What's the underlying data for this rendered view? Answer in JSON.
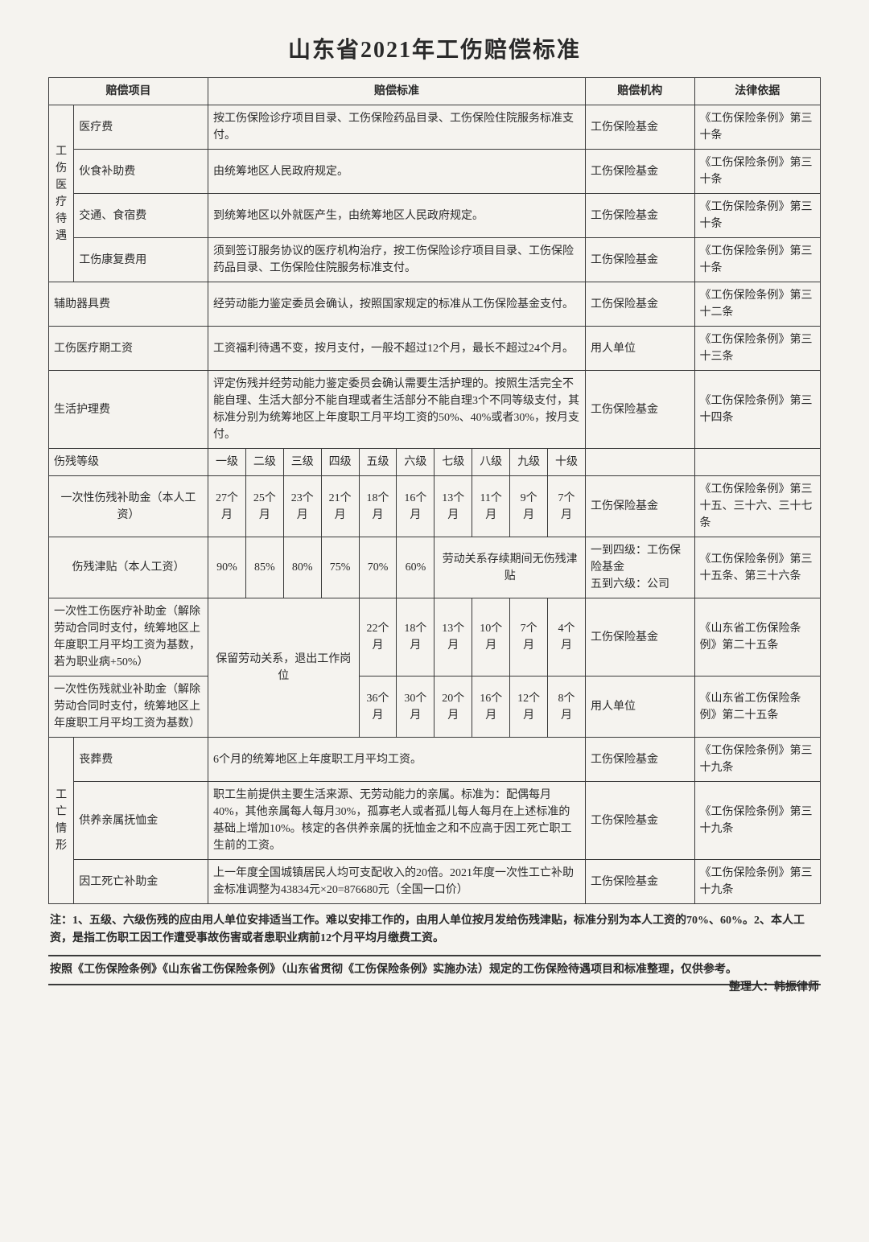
{
  "title": "山东省2021年工伤赔偿标准",
  "headers": {
    "item": "赔偿项目",
    "standard": "赔偿标准",
    "org": "赔偿机构",
    "law": "法律依据"
  },
  "groups": {
    "medical": "工伤医疗待遇",
    "death": "工亡情形"
  },
  "rows": {
    "r1": {
      "name": "医疗费",
      "std": "按工伤保险诊疗项目目录、工伤保险药品目录、工伤保险住院服务标准支付。",
      "org": "工伤保险基金",
      "law": "《工伤保险条例》第三十条"
    },
    "r2": {
      "name": "伙食补助费",
      "std": "由统筹地区人民政府规定。",
      "org": "工伤保险基金",
      "law": "《工伤保险条例》第三十条"
    },
    "r3": {
      "name": "交通、食宿费",
      "std": "到统筹地区以外就医产生，由统筹地区人民政府规定。",
      "org": "工伤保险基金",
      "law": "《工伤保险条例》第三十条"
    },
    "r4": {
      "name": "工伤康复费用",
      "std": "须到签订服务协议的医疗机构治疗，按工伤保险诊疗项目目录、工伤保险药品目录、工伤保险住院服务标准支付。",
      "org": "工伤保险基金",
      "law": "《工伤保险条例》第三十条"
    },
    "r5": {
      "name": "辅助器具费",
      "std": "经劳动能力鉴定委员会确认，按照国家规定的标准从工伤保险基金支付。",
      "org": "工伤保险基金",
      "law": "《工伤保险条例》第三十二条"
    },
    "r6": {
      "name": "工伤医疗期工资",
      "std": "工资福利待遇不变，按月支付，一般不超过12个月，最长不超过24个月。",
      "org": "用人单位",
      "law": "《工伤保险条例》第三十三条"
    },
    "r7": {
      "name": "生活护理费",
      "std": "评定伤残并经劳动能力鉴定委员会确认需要生活护理的。按照生活完全不能自理、生活大部分不能自理或者生活部分不能自理3个不同等级支付，其标准分别为统筹地区上年度职工月平均工资的50%、40%或者30%，按月支付。",
      "org": "工伤保险基金",
      "law": "《工伤保险条例》第三十四条"
    }
  },
  "gradeRow": {
    "name": "伤残等级",
    "levels": [
      "一级",
      "二级",
      "三级",
      "四级",
      "五级",
      "六级",
      "七级",
      "八级",
      "九级",
      "十级"
    ]
  },
  "lump": {
    "name": "一次性伤残补助金（本人工资）",
    "vals": [
      "27个月",
      "25个月",
      "23个月",
      "21个月",
      "18个月",
      "16个月",
      "13个月",
      "11个月",
      "9个月",
      "7个月"
    ],
    "org": "工伤保险基金",
    "law": "《工伤保险条例》第三十五、三十六、三十七条"
  },
  "allowance": {
    "name": "伤残津贴（本人工资）",
    "vals": [
      "90%",
      "85%",
      "80%",
      "75%",
      "70%",
      "60%"
    ],
    "span_text": "劳动关系存续期间无伤残津贴",
    "org": "一到四级：工伤保险基金\n五到六级：公司",
    "law": "《工伤保险条例》第三十五条、第三十六条"
  },
  "medOnce": {
    "name": "一次性工伤医疗补助金（解除劳动合同时支付，统筹地区上年度职工月平均工资为基数，若为职业病+50%）",
    "keep": "保留劳动关系，退出工作岗位",
    "vals": [
      "22个月",
      "18个月",
      "13个月",
      "10个月",
      "7个月",
      "4个月"
    ],
    "org": "工伤保险基金",
    "law": "《山东省工伤保险条例》第二十五条"
  },
  "jobOnce": {
    "name": "一次性伤残就业补助金（解除劳动合同时支付，统筹地区上年度职工月平均工资为基数）",
    "vals": [
      "36个月",
      "30个月",
      "20个月",
      "16个月",
      "12个月",
      "8个月"
    ],
    "org": "用人单位",
    "law": "《山东省工伤保险条例》第二十五条"
  },
  "death1": {
    "name": "丧葬费",
    "std": "6个月的统筹地区上年度职工月平均工资。",
    "org": "工伤保险基金",
    "law": "《工伤保险条例》第三十九条"
  },
  "death2": {
    "name": "供养亲属抚恤金",
    "std": "职工生前提供主要生活来源、无劳动能力的亲属。标准为：配偶每月40%，其他亲属每人每月30%，孤寡老人或者孤儿每人每月在上述标准的基础上增加10%。核定的各供养亲属的抚恤金之和不应高于因工死亡职工生前的工资。",
    "org": "工伤保险基金",
    "law": "《工伤保险条例》第三十九条"
  },
  "death3": {
    "name": "因工死亡补助金",
    "std": "上一年度全国城镇居民人均可支配收入的20倍。2021年度一次性工亡补助金标准调整为43834元×20=876680元（全国一口价）",
    "org": "工伤保险基金",
    "law": "《工伤保险条例》第三十九条"
  },
  "note1": "注：1、五级、六级伤残的应由用人单位安排适当工作。难以安排工作的，由用人单位按月发给伤残津贴，标准分别为本人工资的70%、60%。2、本人工资，是指工伤职工因工作遭受事故伤害或者患职业病前12个月平均月缴费工资。",
  "note2a": "按照《工伤保险条例》《山东省工伤保险条例》（山东省贯彻《工伤保险条例》实施办法）规定的工伤保险待遇项目和标准整理，仅供参考。",
  "note2b": "整理人：韩振律师"
}
